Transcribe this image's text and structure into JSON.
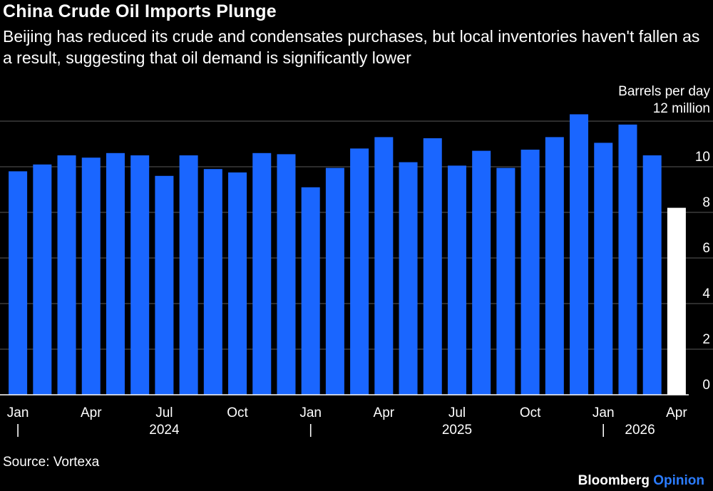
{
  "header": {
    "title": "China Crude Oil Imports Plunge",
    "subtitle": "Beijing has reduced its crude and condensates purchases, but local inventories haven't fallen as a result, suggesting that oil demand is significantly lower"
  },
  "chart_data": {
    "type": "bar",
    "unit_label_line1": "Barrels per day",
    "unit_label_line2": "12 million",
    "categories": [
      "2024-01",
      "2024-02",
      "2024-03",
      "2024-04",
      "2024-05",
      "2024-06",
      "2024-07",
      "2024-08",
      "2024-09",
      "2024-10",
      "2024-11",
      "2024-12",
      "2025-01",
      "2025-02",
      "2025-03",
      "2025-04",
      "2025-05",
      "2025-06",
      "2025-07",
      "2025-08",
      "2025-09",
      "2025-10",
      "2025-11",
      "2025-12",
      "2026-01",
      "2026-02",
      "2026-03",
      "2026-04"
    ],
    "values": [
      9.8,
      10.1,
      10.5,
      10.4,
      10.6,
      10.5,
      9.6,
      10.5,
      9.9,
      9.75,
      10.6,
      10.55,
      9.1,
      9.95,
      10.8,
      11.3,
      10.2,
      11.25,
      10.05,
      10.7,
      9.95,
      10.75,
      11.3,
      12.3,
      11.05,
      11.85,
      10.5,
      8.2
    ],
    "bar_colors": [
      "#1a66ff",
      "#1a66ff",
      "#1a66ff",
      "#1a66ff",
      "#1a66ff",
      "#1a66ff",
      "#1a66ff",
      "#1a66ff",
      "#1a66ff",
      "#1a66ff",
      "#1a66ff",
      "#1a66ff",
      "#1a66ff",
      "#1a66ff",
      "#1a66ff",
      "#1a66ff",
      "#1a66ff",
      "#1a66ff",
      "#1a66ff",
      "#1a66ff",
      "#1a66ff",
      "#1a66ff",
      "#1a66ff",
      "#1a66ff",
      "#1a66ff",
      "#1a66ff",
      "#1a66ff",
      "#ffffff"
    ],
    "ylim": [
      0,
      12
    ],
    "y_ticks": [
      0,
      2,
      4,
      6,
      8,
      10
    ],
    "y_tick_labels": [
      "0",
      "2",
      "4",
      "6",
      "8",
      "10"
    ],
    "x_tick_labels": [
      "Jan",
      "Apr",
      "Jul",
      "Oct",
      "Jan",
      "Apr",
      "Jul",
      "Oct",
      "Jan",
      "Apr"
    ],
    "x_tick_indices": [
      0,
      3,
      6,
      9,
      12,
      15,
      18,
      21,
      24,
      27
    ],
    "year_labels": [
      "2024",
      "2025",
      "2026"
    ],
    "year_label_indices": [
      6,
      18,
      25.5
    ],
    "year_separator_indices": [
      0,
      12,
      24
    ],
    "year_separator_glyph": "|",
    "grid": true,
    "grid_color": "#5a5a5a"
  },
  "footer": {
    "source": "Source: Vortexa",
    "brand_main": "Bloomberg",
    "brand_accent": "Opinion"
  }
}
